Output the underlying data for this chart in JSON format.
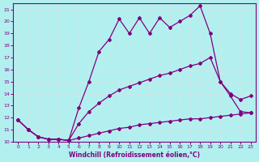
{
  "xlabel": "Windchill (Refroidissement éolien,°C)",
  "bg_color": "#b2f0f0",
  "line_color": "#800080",
  "grid_color": "#c8e8e8",
  "xlim": [
    -0.5,
    23.5
  ],
  "ylim": [
    10,
    21.5
  ],
  "xticks": [
    0,
    1,
    2,
    3,
    4,
    5,
    6,
    7,
    8,
    9,
    10,
    11,
    12,
    13,
    14,
    15,
    16,
    17,
    18,
    19,
    20,
    21,
    22,
    23
  ],
  "yticks": [
    10,
    11,
    12,
    13,
    14,
    15,
    16,
    17,
    18,
    19,
    20,
    21
  ],
  "line1_x": [
    0,
    1,
    2,
    3,
    4,
    5,
    6,
    7,
    8,
    9,
    10,
    11,
    12,
    13,
    14,
    15,
    16,
    17,
    18,
    19,
    20,
    21,
    22,
    23
  ],
  "line1_y": [
    11.8,
    11.0,
    10.4,
    10.2,
    10.2,
    10.1,
    10.3,
    10.5,
    10.7,
    10.9,
    11.1,
    11.2,
    11.4,
    11.5,
    11.6,
    11.7,
    11.8,
    11.9,
    11.9,
    12.0,
    12.1,
    12.2,
    12.3,
    12.4
  ],
  "line2_x": [
    0,
    1,
    2,
    3,
    4,
    5,
    6,
    7,
    8,
    9,
    10,
    11,
    12,
    13,
    14,
    15,
    16,
    17,
    18,
    19,
    20,
    21,
    22,
    23
  ],
  "line2_y": [
    11.8,
    11.0,
    10.4,
    10.2,
    10.2,
    10.1,
    11.5,
    12.5,
    13.2,
    13.8,
    14.3,
    14.6,
    14.9,
    15.2,
    15.5,
    15.7,
    16.0,
    16.3,
    16.5,
    17.0,
    15.0,
    14.0,
    13.5,
    13.8
  ],
  "line3_x": [
    0,
    1,
    2,
    3,
    4,
    5,
    6,
    7,
    8,
    9,
    10,
    11,
    12,
    13,
    14,
    15,
    16,
    17,
    18,
    19,
    20,
    21,
    22,
    23
  ],
  "line3_y": [
    11.8,
    11.0,
    10.4,
    10.2,
    10.2,
    10.1,
    12.8,
    15.0,
    17.5,
    18.5,
    20.2,
    19.0,
    20.3,
    19.0,
    20.3,
    19.5,
    20.0,
    20.5,
    21.3,
    19.0,
    15.0,
    13.8,
    12.5,
    12.4
  ]
}
